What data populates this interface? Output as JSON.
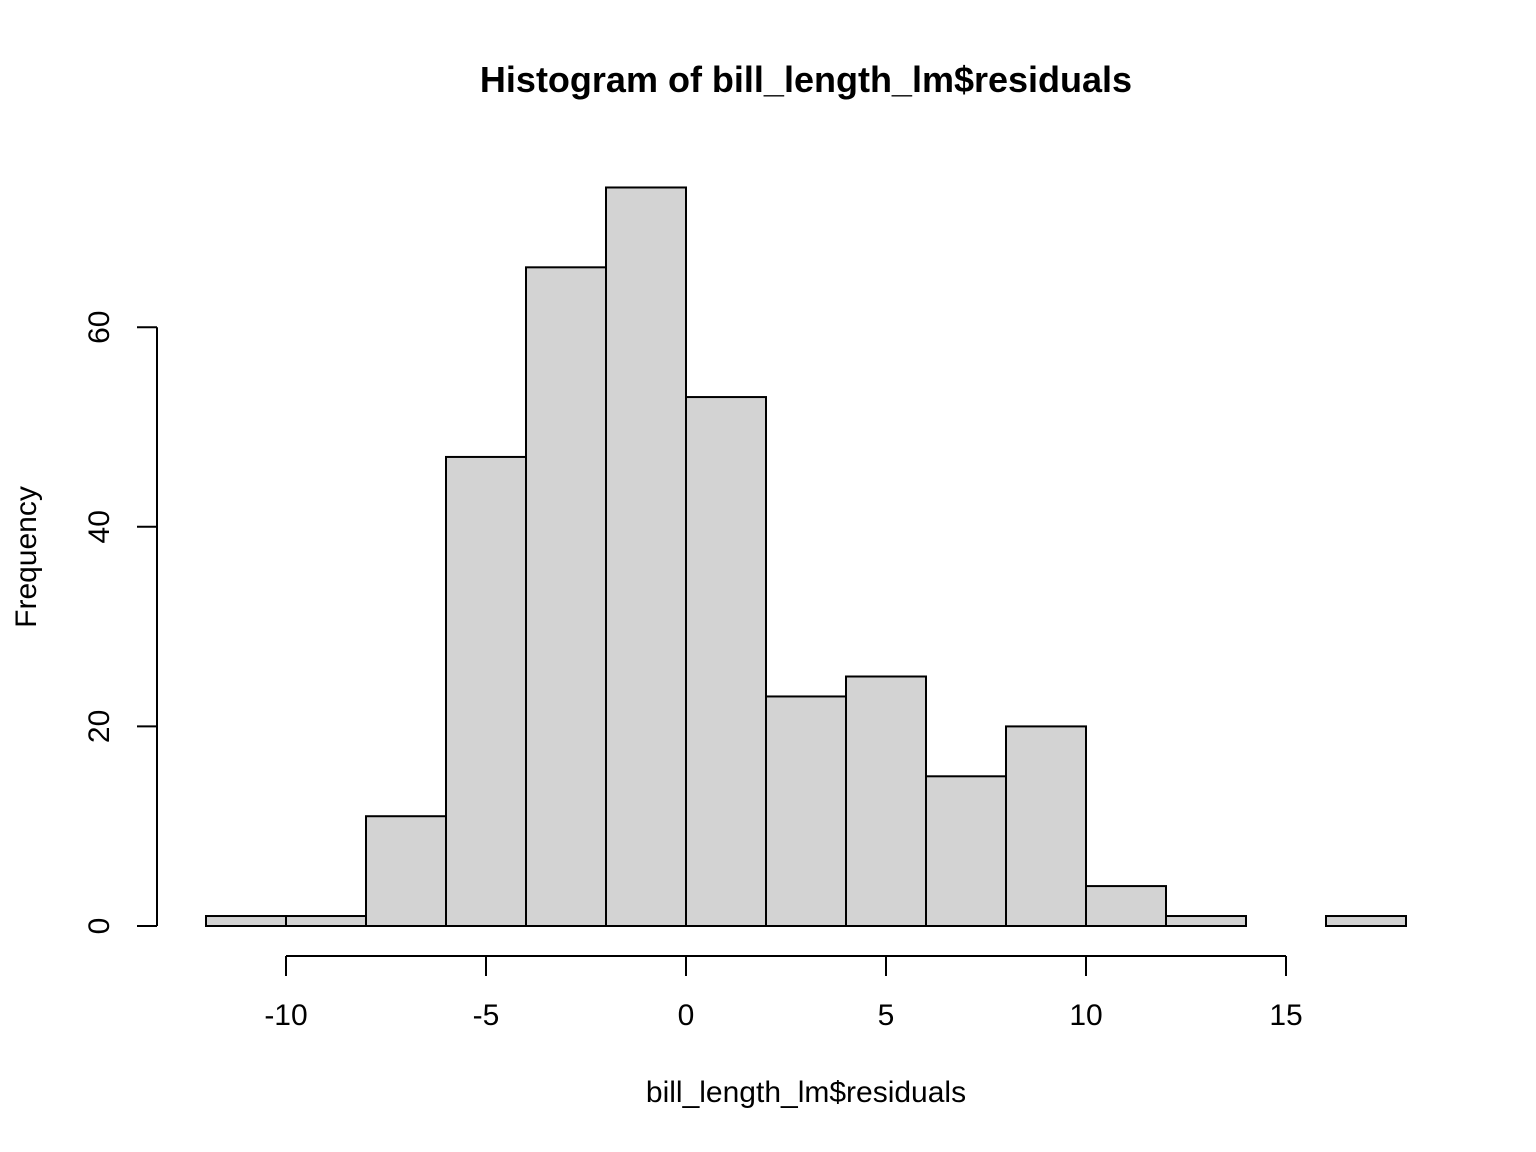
{
  "chart_data": {
    "type": "bar",
    "title": "Histogram of bill_length_lm$residuals",
    "xlabel": "bill_length_lm$residuals",
    "ylabel": "Frequency",
    "bin_edges": [
      -12,
      -10,
      -8,
      -6,
      -4,
      -2,
      0,
      2,
      4,
      6,
      8,
      10,
      12,
      14,
      16,
      18
    ],
    "values": [
      1,
      1,
      11,
      47,
      66,
      74,
      53,
      23,
      25,
      15,
      20,
      4,
      1,
      0,
      1
    ],
    "xlim": [
      -12,
      18
    ],
    "ylim": [
      0,
      74
    ],
    "x_ticks": [
      -10,
      -5,
      0,
      5,
      10,
      15
    ],
    "x_tick_labels": [
      "-10",
      "-5",
      "0",
      "5",
      "10",
      "15"
    ],
    "y_ticks": [
      0,
      20,
      40,
      60
    ],
    "y_tick_labels": [
      "0",
      "20",
      "40",
      "60"
    ],
    "grid": false,
    "legend": "none",
    "colors": {
      "bar_fill": "#d3d3d3",
      "bar_stroke": "#000000",
      "background": "#ffffff"
    }
  }
}
